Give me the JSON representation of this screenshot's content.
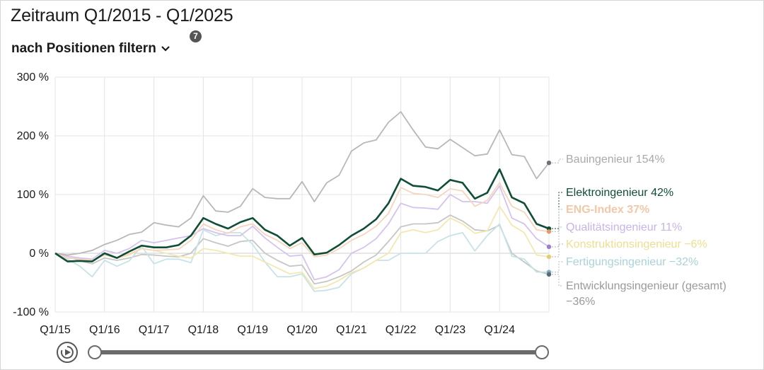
{
  "header": {
    "title": "Zeitraum Q1/2015 - Q1/2025",
    "filter_label": "nach Positionen filtern",
    "badge": "7"
  },
  "controls": {
    "play_icon": "replay-icon",
    "slider_start": 0,
    "slider_end": 1
  },
  "chart_data": {
    "type": "line",
    "ylim": [
      -100,
      300
    ],
    "yticks": [
      "300 %",
      "200 %",
      "100 %",
      "0 %",
      "-100 %"
    ],
    "ytick_values": [
      300,
      200,
      100,
      0,
      -100
    ],
    "xticks": [
      "Q1/15",
      "Q1/16",
      "Q1/17",
      "Q1/18",
      "Q1/19",
      "Q1/20",
      "Q1/21",
      "Q1/22",
      "Q1/23",
      "Q1/24"
    ],
    "quarters": 41,
    "grid": true,
    "series": [
      {
        "name": "Bauingenieur",
        "label": "Bauingenieur 154%",
        "color": "#b8b8b8",
        "label_color": "#a9a9a9",
        "bold": false,
        "dot": "#6f6f7a",
        "values": [
          0,
          -3,
          0,
          5,
          15,
          22,
          32,
          36,
          52,
          48,
          45,
          60,
          98,
          72,
          70,
          80,
          110,
          95,
          93,
          93,
          122,
          88,
          120,
          133,
          174,
          188,
          193,
          223,
          241,
          210,
          181,
          178,
          194,
          180,
          166,
          169,
          210,
          168,
          165,
          127,
          154
        ]
      },
      {
        "name": "Elektroingenieur",
        "label": "Elektroingenieur 42%",
        "color": "#0f4d35",
        "label_color": "#0f4d35",
        "bold": false,
        "dot": "#0f4d35",
        "values": [
          0,
          -14,
          -13,
          -14,
          0,
          -8,
          3,
          13,
          10,
          10,
          14,
          30,
          60,
          50,
          42,
          53,
          60,
          40,
          30,
          13,
          26,
          -2,
          1,
          14,
          30,
          42,
          58,
          85,
          127,
          115,
          113,
          107,
          125,
          120,
          93,
          103,
          143,
          95,
          85,
          50,
          42
        ]
      },
      {
        "name": "ENG-Index",
        "label": "ENG-Index 37%",
        "color": "#f5d5bd",
        "label_color": "#f2c8a8",
        "bold": true,
        "dot": "#e09a6a",
        "values": [
          0,
          -8,
          -10,
          -12,
          -3,
          -8,
          -1,
          8,
          5,
          6,
          7,
          22,
          50,
          40,
          34,
          45,
          50,
          32,
          22,
          8,
          18,
          -6,
          -3,
          8,
          22,
          32,
          46,
          68,
          112,
          102,
          100,
          95,
          110,
          106,
          80,
          90,
          120,
          80,
          70,
          40,
          37
        ]
      },
      {
        "name": "Qualitätsingenieur",
        "label": "Qualitätsingenieur 11%",
        "color": "#d4c3ee",
        "label_color": "#c8b4ea",
        "bold": false,
        "dot": "#9b7fd1",
        "values": [
          0,
          -5,
          -8,
          -10,
          5,
          0,
          8,
          22,
          18,
          22,
          26,
          30,
          42,
          35,
          30,
          30,
          46,
          26,
          10,
          -5,
          -3,
          -45,
          -40,
          -28,
          0,
          10,
          25,
          50,
          85,
          78,
          77,
          75,
          100,
          88,
          88,
          85,
          115,
          60,
          50,
          25,
          11
        ]
      },
      {
        "name": "Konstruktionsingenieur",
        "label": "Konstruktionsingenieur −6%",
        "color": "#f3e8b0",
        "label_color": "#efdd90",
        "bold": false,
        "dot": "#e0cf70",
        "values": [
          0,
          -6,
          -10,
          -13,
          -2,
          -8,
          -3,
          8,
          5,
          0,
          -5,
          -8,
          8,
          5,
          0,
          -5,
          -5,
          -15,
          -25,
          -35,
          -32,
          -60,
          -56,
          -46,
          -33,
          -25,
          -12,
          0,
          35,
          40,
          35,
          40,
          60,
          50,
          34,
          38,
          80,
          48,
          35,
          -3,
          -6
        ]
      },
      {
        "name": "Fertigungsingenieur",
        "label": "Fertigungsingenieur −32%",
        "color": "#c6e3e7",
        "label_color": "#a8d3d9",
        "bold": false,
        "dot": "#7fb0bd",
        "values": [
          0,
          -10,
          -22,
          -40,
          -12,
          -22,
          -13,
          12,
          -18,
          -10,
          -10,
          -16,
          40,
          30,
          35,
          35,
          15,
          -15,
          -40,
          -40,
          -35,
          -65,
          -63,
          -58,
          -35,
          -25,
          -12,
          -12,
          0,
          0,
          0,
          20,
          30,
          35,
          4,
          30,
          50,
          -5,
          -10,
          -32,
          -32
        ]
      },
      {
        "name": "Entwicklungsingenieur (gesamt)",
        "label": "Entwicklungsingenieur (gesamt)",
        "label2": "−36%",
        "color": "#c6c6c6",
        "label_color": "#9a9a9a",
        "bold": false,
        "dot": "#5b6b75",
        "values": [
          0,
          -5,
          -13,
          -18,
          -8,
          -12,
          -8,
          -2,
          -3,
          -5,
          -6,
          0,
          25,
          18,
          12,
          20,
          22,
          0,
          -12,
          -22,
          -20,
          -52,
          -48,
          -40,
          -30,
          -15,
          -3,
          20,
          45,
          50,
          50,
          52,
          65,
          55,
          40,
          38,
          48,
          0,
          -15,
          -30,
          -36
        ]
      }
    ]
  }
}
